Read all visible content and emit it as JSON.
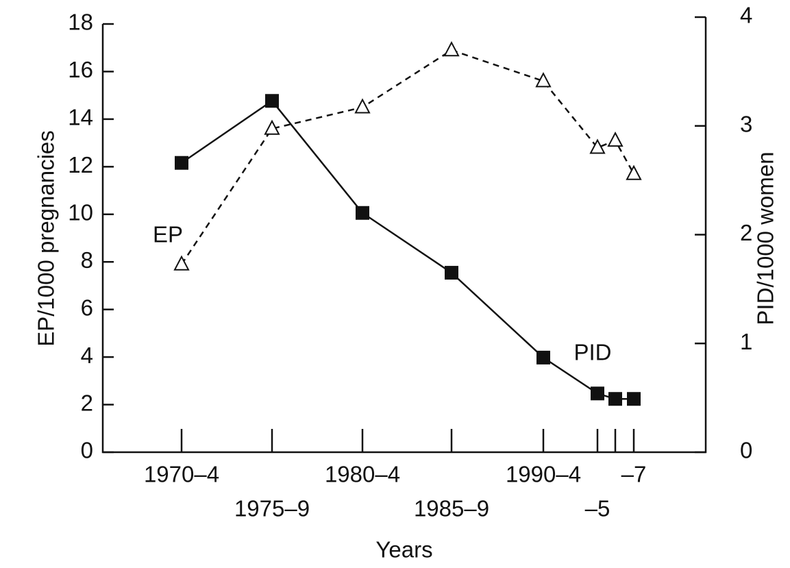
{
  "chart_data": {
    "type": "line",
    "x_label": "Years",
    "y_label": "EP/1000 pregnancies",
    "y2_label": "PID/1000 women",
    "categories": [
      "1970–4",
      "1975–9",
      "1980–4",
      "1985–9",
      "1990–4",
      "–5",
      null,
      "–7"
    ],
    "series": [
      {
        "name": "EP",
        "color": "#111111",
        "dash": true,
        "marker": "triangle",
        "values": [
          7.9,
          13.6,
          14.5,
          16.9,
          15.6,
          12.8,
          13.1,
          11.7
        ]
      },
      {
        "name": "PID",
        "color": "#111111",
        "dash": false,
        "marker": "square",
        "axis": "y2",
        "values": [
          2.66,
          3.23,
          2.2,
          1.65,
          0.87,
          0.54,
          0.49,
          0.49
        ]
      }
    ],
    "ylim": [
      0,
      18
    ],
    "yticks": [
      0,
      2,
      4,
      6,
      8,
      10,
      12,
      14,
      16,
      18
    ],
    "y2lim": [
      0,
      4
    ],
    "y2ticks": [
      0,
      1,
      2,
      3,
      4
    ]
  }
}
